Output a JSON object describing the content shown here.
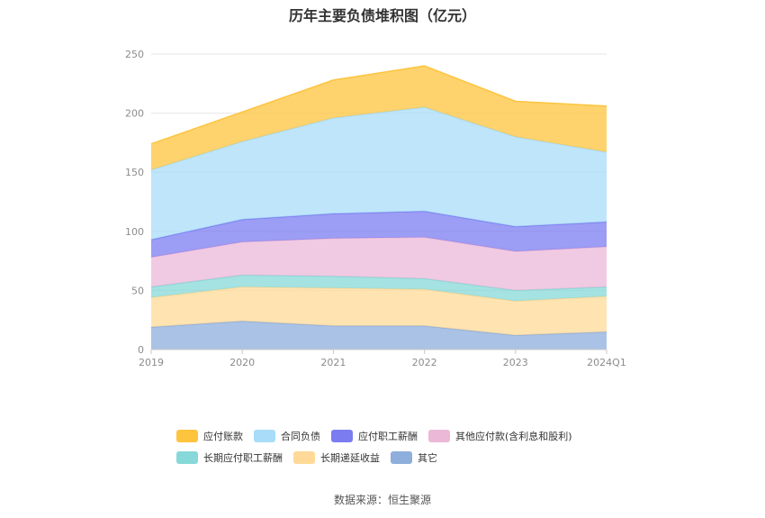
{
  "title": "历年主要负债堆积图（亿元）",
  "source": "数据来源：恒生聚源",
  "chart_data": {
    "type": "area",
    "stacked": true,
    "title": "历年主要负债堆积图（亿元）",
    "categories": [
      "2019",
      "2020",
      "2021",
      "2022",
      "2023",
      "2024Q1"
    ],
    "ylim": [
      0,
      250
    ],
    "yticks": [
      0,
      50,
      100,
      150,
      200,
      250
    ],
    "grid": true,
    "legend_position": "bottom",
    "series": [
      {
        "name": "其它",
        "color": "#8eaedc",
        "values": [
          19,
          24,
          20,
          20,
          12,
          15
        ]
      },
      {
        "name": "长期递延收益",
        "color": "#ffd997",
        "values": [
          25,
          29,
          32,
          31,
          29,
          30
        ]
      },
      {
        "name": "长期应付职工薪酬",
        "color": "#87d8d8",
        "values": [
          9,
          10,
          10,
          9,
          9,
          8
        ]
      },
      {
        "name": "其他应付款(含利息和股利)",
        "color": "#ebb8d8",
        "values": [
          25,
          28,
          32,
          35,
          33,
          34
        ]
      },
      {
        "name": "应付职工薪酬",
        "color": "#7b7cf0",
        "values": [
          15,
          19,
          21,
          22,
          21,
          21
        ]
      },
      {
        "name": "合同负债",
        "color": "#a8dcf8",
        "values": [
          59,
          66,
          81,
          88,
          76,
          59
        ]
      },
      {
        "name": "应付账款",
        "color": "#fdc43e",
        "values": [
          22,
          25,
          32,
          35,
          30,
          39
        ]
      }
    ],
    "legend_order": [
      "应付账款",
      "合同负债",
      "应付职工薪酬",
      "其他应付款(含利息和股利)",
      "长期应付职工薪酬",
      "长期递延收益",
      "其它"
    ]
  }
}
